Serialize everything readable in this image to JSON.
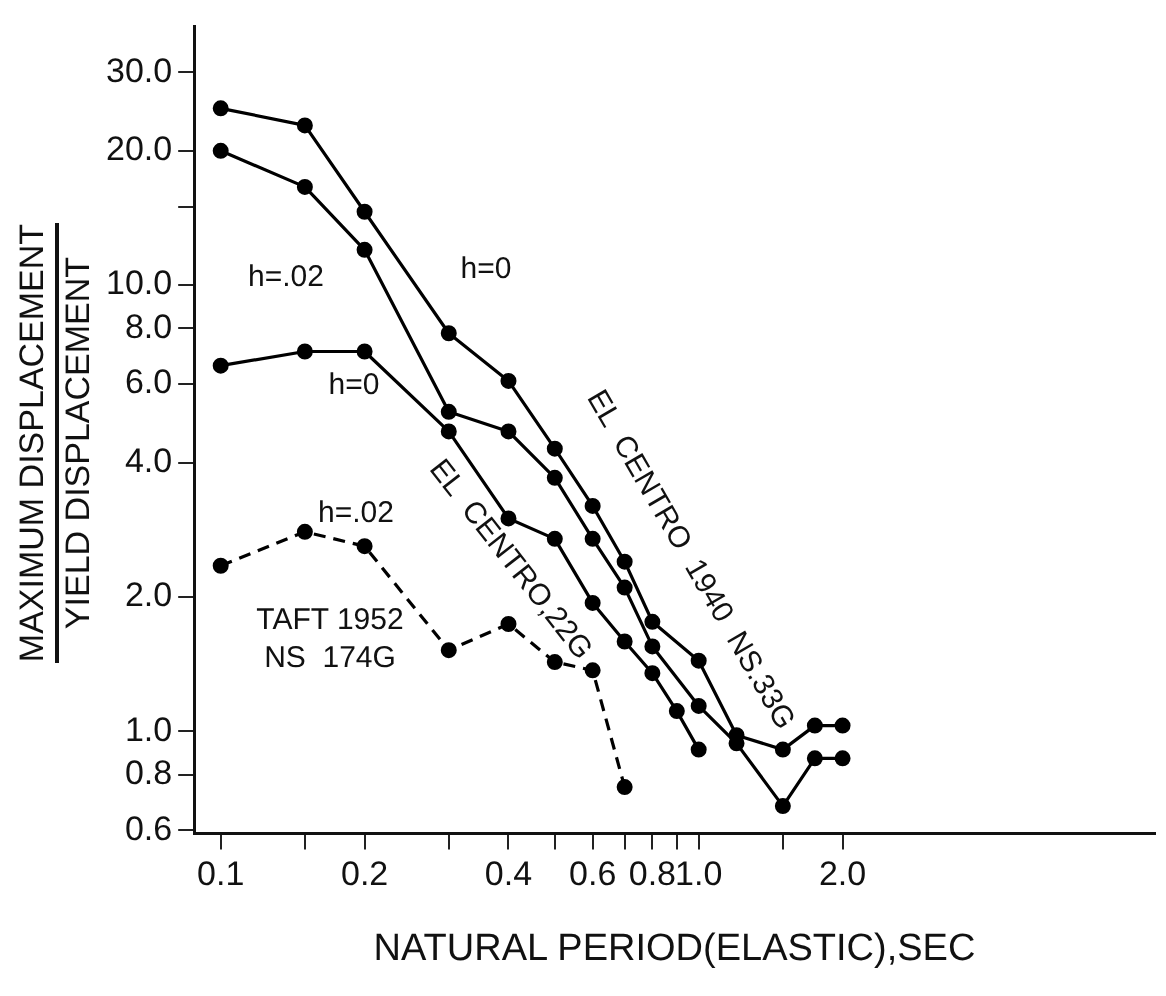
{
  "chart_data": {
    "type": "line",
    "xlabel": "NATURAL PERIOD(ELASTIC),SEC",
    "ylabel": "MAXIMUM DISPLACEMENT\nYIELD DISPLACEMENT",
    "log": "xy",
    "xlim": [
      0.088,
      9
    ],
    "ylim": [
      0.59,
      38
    ],
    "xticks": [
      {
        "value": 0.1,
        "label": "0.1"
      },
      {
        "value": 0.15,
        "label": null
      },
      {
        "value": 0.2,
        "label": "0.2"
      },
      {
        "value": 0.3,
        "label": null
      },
      {
        "value": 0.4,
        "label": "0.4"
      },
      {
        "value": 0.5,
        "label": null
      },
      {
        "value": 0.6,
        "label": "0.6"
      },
      {
        "value": 0.7,
        "label": null
      },
      {
        "value": 0.8,
        "label": "0.8"
      },
      {
        "value": 0.9,
        "label": null
      },
      {
        "value": 1,
        "label": "1.0"
      },
      {
        "value": 1.5,
        "label": null
      },
      {
        "value": 2,
        "label": "2.0"
      }
    ],
    "yticks": [
      {
        "value": 0.6,
        "label": "0.6"
      },
      {
        "value": 0.8,
        "label": "0.8"
      },
      {
        "value": 1,
        "label": "1.0"
      },
      {
        "value": 2,
        "label": "2.0"
      },
      {
        "value": 4,
        "label": "4.0"
      },
      {
        "value": 6,
        "label": "6.0"
      },
      {
        "value": 8,
        "label": "8.0"
      },
      {
        "value": 10,
        "label": "10.0"
      },
      {
        "value": 15,
        "label": null
      },
      {
        "value": 20,
        "label": "20.0"
      },
      {
        "value": 30,
        "label": "30.0"
      }
    ],
    "grid": false,
    "legend": false,
    "marker": "circle",
    "series": [
      {
        "color": "#000000",
        "line_style": "solid",
        "x": [
          0.1,
          0.15,
          0.2,
          0.3,
          0.4,
          0.5,
          0.6,
          0.7,
          0.8,
          1.0,
          1.2,
          1.5,
          1.75,
          2.0
        ],
        "values": [
          24.9,
          22.8,
          14.6,
          7.8,
          6.1,
          4.3,
          3.2,
          2.4,
          1.76,
          1.44,
          0.98,
          0.91,
          1.03,
          1.03
        ]
      },
      {
        "color": "#000000",
        "line_style": "solid",
        "x": [
          0.1,
          0.15,
          0.2,
          0.3,
          0.4,
          0.5,
          0.6,
          0.7,
          0.8,
          1.0,
          1.2,
          1.5,
          1.75,
          2.0
        ],
        "values": [
          20.0,
          16.6,
          12.0,
          5.2,
          4.7,
          3.7,
          2.7,
          2.1,
          1.55,
          1.14,
          0.94,
          0.68,
          0.87,
          0.87
        ]
      },
      {
        "color": "#000000",
        "line_style": "solid",
        "x": [
          0.1,
          0.15,
          0.2,
          0.3,
          0.4,
          0.5,
          0.6,
          0.7,
          0.8,
          0.9,
          1.0
        ],
        "values": [
          6.6,
          7.1,
          7.1,
          4.7,
          3.0,
          2.7,
          1.94,
          1.59,
          1.35,
          1.11,
          0.91
        ]
      },
      {
        "color": "#000000",
        "line_style": "dashed",
        "x": [
          0.1,
          0.15,
          0.2,
          0.3,
          0.4,
          0.5,
          0.6,
          0.7
        ],
        "values": [
          2.35,
          2.8,
          2.6,
          1.52,
          1.74,
          1.43,
          1.37,
          0.75
        ]
      }
    ],
    "annotations": [
      "h=.02",
      "h=0",
      "h=0",
      "h=.02",
      "TAFT 1952\nNS  174G",
      "EL  CENTRO,22G",
      "EL  CENTRO  1940  NS.33G"
    ]
  }
}
